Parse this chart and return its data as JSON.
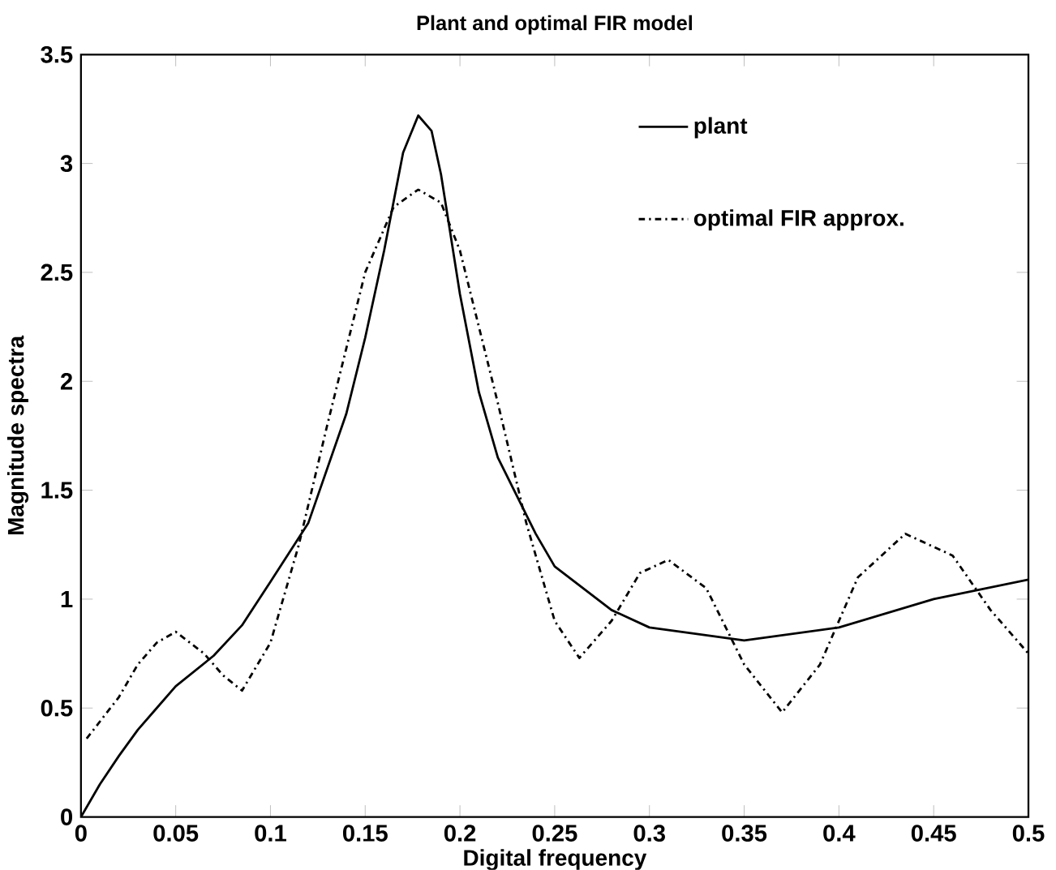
{
  "chart_data": {
    "type": "line",
    "title": "Plant and optimal FIR model",
    "xlabel": "Digital frequency",
    "ylabel": "Magnitude spectra",
    "xlim": [
      0,
      0.5
    ],
    "ylim": [
      0,
      3.5
    ],
    "xticks": [
      0,
      0.05,
      0.1,
      0.15,
      0.2,
      0.25,
      0.3,
      0.35,
      0.4,
      0.45,
      0.5
    ],
    "yticks": [
      0,
      0.5,
      1,
      1.5,
      2,
      2.5,
      3,
      3.5
    ],
    "grid": false,
    "legend": "top right",
    "marker": "none",
    "series": [
      {
        "name": "plant",
        "color": "#000000",
        "line_style": "solid",
        "x": [
          0,
          0.01,
          0.02,
          0.03,
          0.04,
          0.05,
          0.07,
          0.085,
          0.1,
          0.12,
          0.14,
          0.15,
          0.16,
          0.17,
          0.178,
          0.185,
          0.19,
          0.2,
          0.21,
          0.22,
          0.24,
          0.25,
          0.28,
          0.3,
          0.35,
          0.4,
          0.45,
          0.5
        ],
        "values": [
          0,
          0.15,
          0.28,
          0.4,
          0.5,
          0.6,
          0.74,
          0.88,
          1.08,
          1.35,
          1.85,
          2.2,
          2.6,
          3.05,
          3.22,
          3.15,
          2.95,
          2.4,
          1.95,
          1.65,
          1.3,
          1.15,
          0.95,
          0.87,
          0.81,
          0.87,
          1.0,
          1.09
        ]
      },
      {
        "name": "optimal FIR approx.",
        "color": "#000000",
        "line_style": "dashdot",
        "x": [
          0.003,
          0.02,
          0.03,
          0.04,
          0.05,
          0.065,
          0.075,
          0.085,
          0.1,
          0.115,
          0.13,
          0.15,
          0.165,
          0.178,
          0.19,
          0.2,
          0.22,
          0.235,
          0.25,
          0.263,
          0.28,
          0.295,
          0.31,
          0.33,
          0.35,
          0.37,
          0.39,
          0.41,
          0.435,
          0.46,
          0.48,
          0.5
        ],
        "values": [
          0.36,
          0.55,
          0.7,
          0.8,
          0.85,
          0.75,
          0.65,
          0.58,
          0.8,
          1.25,
          1.8,
          2.5,
          2.8,
          2.88,
          2.82,
          2.6,
          1.9,
          1.35,
          0.9,
          0.73,
          0.9,
          1.12,
          1.18,
          1.05,
          0.7,
          0.48,
          0.7,
          1.1,
          1.3,
          1.2,
          0.95,
          0.75
        ]
      }
    ]
  }
}
